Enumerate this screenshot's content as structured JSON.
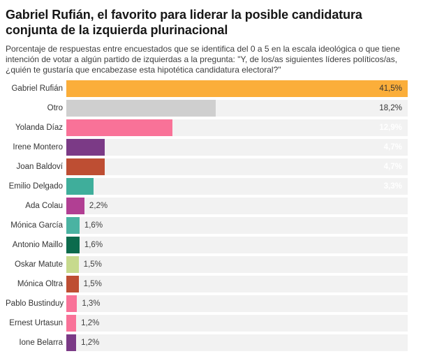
{
  "page": {
    "background": "#ffffff"
  },
  "chart_data": {
    "type": "bar",
    "orientation": "horizontal",
    "title": "Gabriel Rufián, el favorito para liderar la posible candidatura conjunta de la izquierda plurinacional",
    "subtitle": "Porcentaje de respuestas entre encuestados que se identifica del 0 a 5 en la escala ideológica o que tiene intención de votar a algún partido de izquierdas a la pregunta: \"Y, de los/as siguientes líderes políticos/as, ¿quién te gustaría que encabezase esta hipotética candidatura electoral?\"",
    "xlabel": "",
    "ylabel": "",
    "xlim": [
      0,
      41.5
    ],
    "grid": false,
    "legend": "none",
    "track_color": "#f2f2f2",
    "categories": [
      "Gabriel Rufián",
      "Otro",
      "Yolanda Díaz",
      "Irene Montero",
      "Joan Baldoví",
      "Emilio Delgado",
      "Ada Colau",
      "Mónica García",
      "Antonio Maillo",
      "Oskar Matute",
      "Mónica Oltra",
      "Pablo Bustinduy",
      "Ernest Urtasun",
      "Ione Belarra"
    ],
    "values": [
      41.5,
      18.2,
      12.9,
      4.7,
      4.7,
      3.3,
      2.2,
      1.6,
      1.6,
      1.5,
      1.5,
      1.3,
      1.2,
      1.2
    ],
    "value_labels": [
      "41,5%",
      "18,2%",
      "12,9%",
      "4,7%",
      "4,7%",
      "3,3%",
      "2,2%",
      "1,6%",
      "1,6%",
      "1,5%",
      "1,5%",
      "1,3%",
      "1,2%",
      "1,2%"
    ],
    "bar_colors": [
      "#FBAE3A",
      "#CFCFCF",
      "#F97298",
      "#7B3A86",
      "#BE4E33",
      "#3FAE9B",
      "#B13F93",
      "#4AB3A2",
      "#0C6B4D",
      "#C7DA8D",
      "#BE4E33",
      "#F97298",
      "#F97298",
      "#7B3A86"
    ],
    "label_placement": [
      "inside",
      "inside",
      "inside",
      "inside",
      "inside",
      "inside",
      "outside",
      "outside",
      "outside",
      "outside",
      "outside",
      "outside",
      "outside",
      "outside"
    ],
    "label_colors": [
      "#333333",
      "#333333",
      "#ffffff",
      "#ffffff",
      "#ffffff",
      "#ffffff",
      "#3d3d3d",
      "#3d3d3d",
      "#3d3d3d",
      "#3d3d3d",
      "#3d3d3d",
      "#3d3d3d",
      "#3d3d3d",
      "#3d3d3d"
    ],
    "label_bold": [
      false,
      false,
      true,
      true,
      true,
      true,
      false,
      false,
      false,
      false,
      false,
      false,
      false,
      false
    ]
  }
}
